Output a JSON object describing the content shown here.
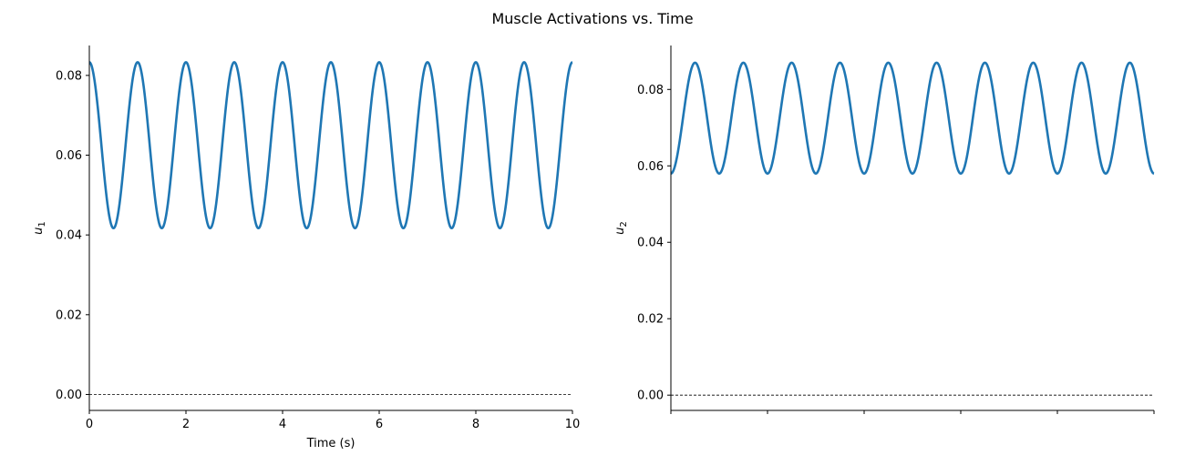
{
  "figure": {
    "suptitle": "Muscle Activations vs. Time"
  },
  "style": {
    "line_color": "#1f77b4",
    "axis_color": "#000000",
    "zero_line_color": "#000000"
  },
  "chart_data": [
    {
      "type": "line",
      "title": "",
      "xlabel": "Time (s)",
      "ylabel": "u",
      "ylabel_subscript": "1",
      "xlim": [
        0,
        10
      ],
      "ylim": [
        -0.004,
        0.0875
      ],
      "xticks": [
        0,
        2,
        4,
        6,
        8,
        10
      ],
      "xtick_labels": [
        "0",
        "2",
        "4",
        "6",
        "8",
        "10"
      ],
      "yticks": [
        0.0,
        0.02,
        0.04,
        0.06,
        0.08
      ],
      "ytick_labels": [
        "0.00",
        "0.02",
        "0.04",
        "0.06",
        "0.08"
      ],
      "hline": 0.0,
      "grid": false,
      "series": [
        {
          "function": "u1(t) = 0.0625 + 0.0208*cos(2*pi*t)",
          "x": [
            0,
            0.125,
            0.25,
            0.375,
            0.5,
            0.625,
            0.75,
            0.875,
            1.0,
            1.5,
            2.0,
            2.5,
            3.0,
            3.5,
            4.0,
            4.5,
            5.0,
            5.5,
            6.0,
            6.5,
            7.0,
            7.5,
            8.0,
            8.5,
            9.0,
            9.5,
            10.0
          ],
          "values": [
            0.0833,
            0.0772,
            0.0625,
            0.0478,
            0.0417,
            0.0478,
            0.0625,
            0.0772,
            0.0833,
            0.0417,
            0.0833,
            0.0417,
            0.0833,
            0.0417,
            0.0833,
            0.0417,
            0.0833,
            0.0417,
            0.0833,
            0.0417,
            0.0833,
            0.0417,
            0.0833,
            0.0417,
            0.0833,
            0.0417,
            0.0833
          ]
        }
      ]
    },
    {
      "type": "line",
      "title": "",
      "xlabel": "",
      "ylabel": "u",
      "ylabel_subscript": "2",
      "xlim": [
        0,
        10
      ],
      "ylim": [
        -0.004,
        0.0915
      ],
      "xticks": [
        0,
        2,
        4,
        6,
        8,
        10
      ],
      "xtick_labels": [
        "",
        "",
        "",
        "",
        "",
        ""
      ],
      "yticks": [
        0.0,
        0.02,
        0.04,
        0.06,
        0.08
      ],
      "ytick_labels": [
        "0.00",
        "0.02",
        "0.04",
        "0.06",
        "0.08"
      ],
      "hline": 0.0,
      "grid": false,
      "series": [
        {
          "function": "u2(t) = 0.0725 - 0.0145*cos(2*pi*t)",
          "x": [
            0,
            0.125,
            0.25,
            0.375,
            0.5,
            0.625,
            0.75,
            0.875,
            1.0,
            1.5,
            2.0,
            2.5,
            3.0,
            3.5,
            4.0,
            4.5,
            5.0,
            5.5,
            6.0,
            6.5,
            7.0,
            7.5,
            8.0,
            8.5,
            9.0,
            9.5,
            10.0
          ],
          "values": [
            0.058,
            0.0622,
            0.0725,
            0.0828,
            0.087,
            0.0828,
            0.0725,
            0.0622,
            0.058,
            0.087,
            0.058,
            0.087,
            0.058,
            0.087,
            0.058,
            0.087,
            0.058,
            0.087,
            0.058,
            0.087,
            0.058,
            0.087,
            0.058,
            0.087,
            0.058,
            0.087,
            0.058
          ]
        }
      ]
    }
  ]
}
